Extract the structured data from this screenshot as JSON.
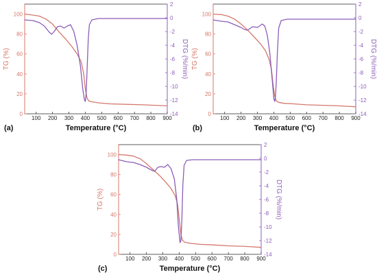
{
  "colors": {
    "tg": "#d4776a",
    "dtg": "#8b5cb8",
    "axis": "#333333"
  },
  "chart_data": [
    {
      "panel_label": "(a)",
      "type": "line",
      "xlabel": "Temperature (°C)",
      "ylabel_left": "TG (%)",
      "ylabel_right": "DTG (%/min)",
      "xlim": [
        30,
        900
      ],
      "ylim_left": [
        0,
        110
      ],
      "ylim_right": [
        -14,
        2
      ],
      "xticks": [
        100,
        200,
        300,
        400,
        500,
        600,
        700,
        800,
        900
      ],
      "yticks_left": [
        0,
        20,
        40,
        60,
        80,
        100
      ],
      "yticks_right": [
        2,
        0,
        -2,
        -4,
        -6,
        -8,
        -10,
        -12,
        -14
      ],
      "series": [
        {
          "axis": "left",
          "color": "tg",
          "x": [
            30,
            80,
            120,
            160,
            200,
            240,
            280,
            320,
            350,
            375,
            390,
            400,
            410,
            420,
            440,
            480,
            550,
            650,
            750,
            900
          ],
          "y": [
            100,
            99,
            98,
            95,
            90,
            82,
            75,
            67,
            60,
            52,
            40,
            25,
            16,
            13,
            12,
            11,
            10,
            9.5,
            9,
            8
          ]
        },
        {
          "axis": "right",
          "color": "dtg",
          "x": [
            30,
            80,
            120,
            150,
            180,
            195,
            210,
            230,
            250,
            270,
            290,
            310,
            330,
            350,
            370,
            385,
            395,
            400,
            405,
            410,
            418,
            425,
            440,
            480,
            600,
            750,
            900
          ],
          "y": [
            -0.3,
            -0.4,
            -0.7,
            -1.2,
            -2.1,
            -2.4,
            -2.0,
            -1.3,
            -1.2,
            -1.5,
            -1.2,
            -1.0,
            -2.0,
            -4.0,
            -7.0,
            -10.5,
            -12.0,
            -12.2,
            -11.0,
            -8.0,
            -3.0,
            -1.0,
            -0.3,
            -0.1,
            -0.1,
            -0.1,
            -0.1
          ]
        }
      ]
    },
    {
      "panel_label": "(b)",
      "type": "line",
      "xlabel": "Temperature (°C)",
      "ylabel_left": "TG (%)",
      "ylabel_right": "DTG (%/min)",
      "xlim": [
        30,
        900
      ],
      "ylim_left": [
        0,
        110
      ],
      "ylim_right": [
        -14,
        2
      ],
      "xticks": [
        100,
        200,
        300,
        400,
        500,
        600,
        700,
        800,
        900
      ],
      "yticks_left": [
        0,
        20,
        40,
        60,
        80,
        100
      ],
      "yticks_right": [
        2,
        0,
        -2,
        -4,
        -6,
        -8,
        -10,
        -12,
        -14
      ],
      "series": [
        {
          "axis": "left",
          "color": "tg",
          "x": [
            30,
            80,
            120,
            160,
            200,
            240,
            280,
            320,
            350,
            370,
            385,
            395,
            405,
            415,
            430,
            460,
            520,
            600,
            700,
            800,
            900
          ],
          "y": [
            100,
            99.5,
            98,
            95,
            90,
            84,
            77,
            70,
            63,
            55,
            45,
            30,
            18,
            13,
            11.5,
            10.5,
            10,
            9,
            8.5,
            8,
            7
          ]
        },
        {
          "axis": "right",
          "color": "dtg",
          "x": [
            30,
            80,
            120,
            160,
            200,
            220,
            240,
            270,
            300,
            330,
            345,
            360,
            375,
            390,
            400,
            405,
            410,
            415,
            422,
            430,
            445,
            480,
            600,
            750,
            900
          ],
          "y": [
            -0.3,
            -0.5,
            -0.6,
            -1.0,
            -1.4,
            -1.7,
            -1.8,
            -1.3,
            -1.4,
            -0.9,
            -1.2,
            -2.5,
            -5.0,
            -9.0,
            -11.8,
            -12.2,
            -11.5,
            -9.5,
            -5.0,
            -1.5,
            -0.4,
            -0.2,
            -0.2,
            -0.2,
            -0.2
          ]
        }
      ]
    },
    {
      "panel_label": "(c)",
      "type": "line",
      "xlabel": "Temperature (°C)",
      "ylabel_left": "TG (%)",
      "ylabel_right": "DTG (%/min)",
      "xlim": [
        30,
        900
      ],
      "ylim_left": [
        0,
        110
      ],
      "ylim_right": [
        -14,
        2
      ],
      "xticks": [
        100,
        200,
        300,
        400,
        500,
        600,
        700,
        800,
        900
      ],
      "yticks_left": [
        0,
        20,
        40,
        60,
        80,
        100
      ],
      "yticks_right": [
        2,
        0,
        -2,
        -4,
        -6,
        -8,
        -10,
        -12,
        -14
      ],
      "series": [
        {
          "axis": "left",
          "color": "tg",
          "x": [
            30,
            80,
            120,
            160,
            200,
            240,
            280,
            320,
            350,
            375,
            390,
            400,
            410,
            420,
            435,
            470,
            530,
            600,
            700,
            800,
            900
          ],
          "y": [
            100,
            99.5,
            98.5,
            96,
            91,
            85,
            79,
            72,
            66,
            59,
            50,
            35,
            20,
            14,
            12,
            11,
            10,
            9.5,
            8.5,
            8,
            7
          ]
        },
        {
          "axis": "right",
          "color": "dtg",
          "x": [
            30,
            80,
            120,
            160,
            200,
            230,
            250,
            270,
            290,
            310,
            330,
            350,
            370,
            385,
            395,
            405,
            410,
            416,
            422,
            430,
            445,
            480,
            600,
            750,
            900
          ],
          "y": [
            -0.2,
            -0.5,
            -0.6,
            -0.9,
            -1.3,
            -1.7,
            -1.9,
            -1.3,
            -1.2,
            -1.3,
            -0.9,
            -1.5,
            -3.0,
            -6.0,
            -10.0,
            -12.3,
            -12.0,
            -9.0,
            -4.0,
            -1.0,
            -0.3,
            -0.2,
            -0.2,
            -0.2,
            -0.2
          ]
        }
      ]
    }
  ]
}
